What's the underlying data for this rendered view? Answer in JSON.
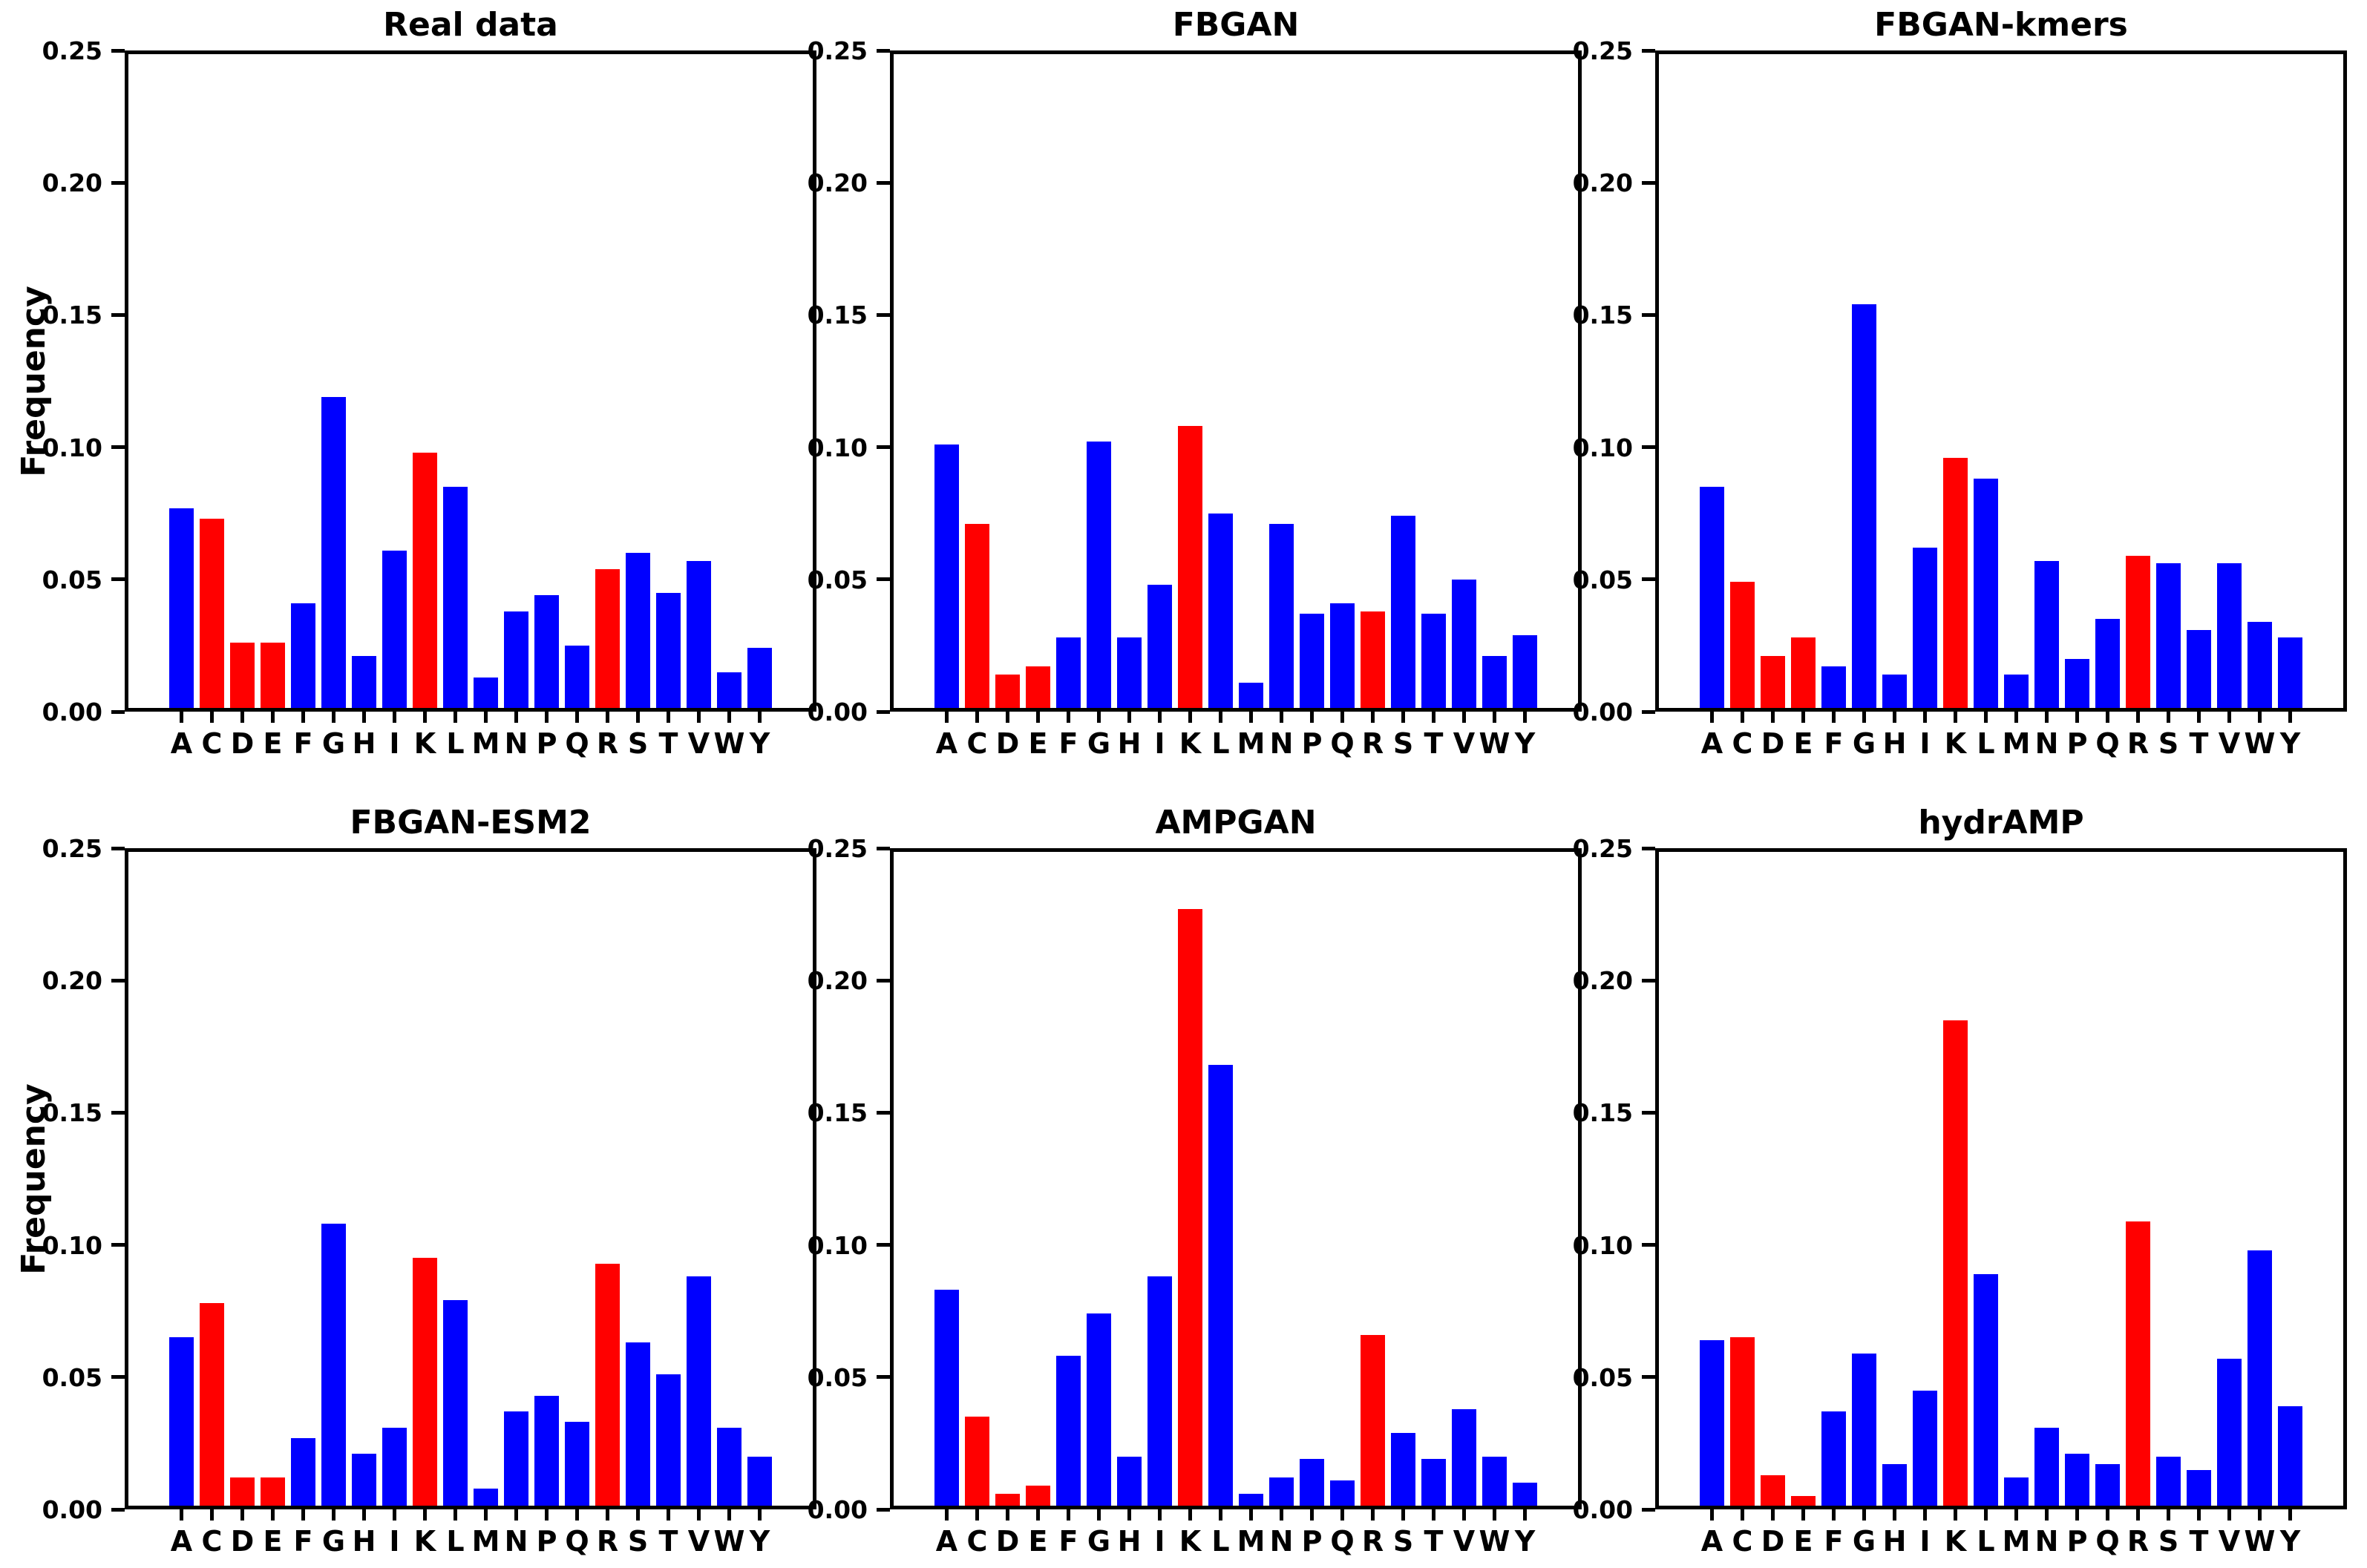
{
  "figure": {
    "ylabel": "Frequency",
    "background_color": "#ffffff",
    "axis_color": "#000000",
    "bar_color_default": "#0000ff",
    "bar_color_highlight": "#ff0000",
    "highlight_categories": [
      "C",
      "D",
      "E",
      "K",
      "R"
    ],
    "y_ticks": [
      "0.00",
      "0.05",
      "0.10",
      "0.15",
      "0.20",
      "0.25"
    ]
  },
  "chart_data": [
    {
      "type": "bar",
      "title": "Real data",
      "ylabel": "Frequency",
      "xlabel": "",
      "ylim": [
        0,
        0.25
      ],
      "grid": false,
      "categories": [
        "A",
        "C",
        "D",
        "E",
        "F",
        "G",
        "H",
        "I",
        "K",
        "L",
        "M",
        "N",
        "P",
        "Q",
        "R",
        "S",
        "T",
        "V",
        "W",
        "Y"
      ],
      "values": [
        0.077,
        0.073,
        0.026,
        0.026,
        0.041,
        0.119,
        0.021,
        0.061,
        0.098,
        0.085,
        0.013,
        0.038,
        0.044,
        0.025,
        0.054,
        0.06,
        0.045,
        0.057,
        0.015,
        0.024
      ]
    },
    {
      "type": "bar",
      "title": "FBGAN",
      "ylabel": "",
      "xlabel": "",
      "ylim": [
        0,
        0.25
      ],
      "grid": false,
      "categories": [
        "A",
        "C",
        "D",
        "E",
        "F",
        "G",
        "H",
        "I",
        "K",
        "L",
        "M",
        "N",
        "P",
        "Q",
        "R",
        "S",
        "T",
        "V",
        "W",
        "Y"
      ],
      "values": [
        0.101,
        0.071,
        0.014,
        0.017,
        0.028,
        0.102,
        0.028,
        0.048,
        0.108,
        0.075,
        0.011,
        0.071,
        0.037,
        0.041,
        0.038,
        0.074,
        0.037,
        0.05,
        0.021,
        0.029
      ]
    },
    {
      "type": "bar",
      "title": "FBGAN-kmers",
      "ylabel": "",
      "xlabel": "",
      "ylim": [
        0,
        0.25
      ],
      "grid": false,
      "categories": [
        "A",
        "C",
        "D",
        "E",
        "F",
        "G",
        "H",
        "I",
        "K",
        "L",
        "M",
        "N",
        "P",
        "Q",
        "R",
        "S",
        "T",
        "V",
        "W",
        "Y"
      ],
      "values": [
        0.085,
        0.049,
        0.021,
        0.028,
        0.017,
        0.154,
        0.014,
        0.062,
        0.096,
        0.088,
        0.014,
        0.057,
        0.02,
        0.035,
        0.059,
        0.056,
        0.031,
        0.056,
        0.034,
        0.028
      ]
    },
    {
      "type": "bar",
      "title": "FBGAN-ESM2",
      "ylabel": "Frequency",
      "xlabel": "",
      "ylim": [
        0,
        0.25
      ],
      "grid": false,
      "categories": [
        "A",
        "C",
        "D",
        "E",
        "F",
        "G",
        "H",
        "I",
        "K",
        "L",
        "M",
        "N",
        "P",
        "Q",
        "R",
        "S",
        "T",
        "V",
        "W",
        "Y"
      ],
      "values": [
        0.065,
        0.078,
        0.012,
        0.012,
        0.027,
        0.108,
        0.021,
        0.031,
        0.095,
        0.079,
        0.008,
        0.037,
        0.043,
        0.033,
        0.093,
        0.063,
        0.051,
        0.088,
        0.031,
        0.02
      ]
    },
    {
      "type": "bar",
      "title": "AMPGAN",
      "ylabel": "",
      "xlabel": "",
      "ylim": [
        0,
        0.25
      ],
      "grid": false,
      "categories": [
        "A",
        "C",
        "D",
        "E",
        "F",
        "G",
        "H",
        "I",
        "K",
        "L",
        "M",
        "N",
        "P",
        "Q",
        "R",
        "S",
        "T",
        "V",
        "W",
        "Y"
      ],
      "values": [
        0.083,
        0.035,
        0.006,
        0.009,
        0.058,
        0.074,
        0.02,
        0.088,
        0.227,
        0.168,
        0.006,
        0.012,
        0.019,
        0.011,
        0.066,
        0.029,
        0.019,
        0.038,
        0.02,
        0.01
      ]
    },
    {
      "type": "bar",
      "title": "hydrAMP",
      "ylabel": "",
      "xlabel": "",
      "ylim": [
        0,
        0.25
      ],
      "grid": false,
      "categories": [
        "A",
        "C",
        "D",
        "E",
        "F",
        "G",
        "H",
        "I",
        "K",
        "L",
        "M",
        "N",
        "P",
        "Q",
        "R",
        "S",
        "T",
        "V",
        "W",
        "Y"
      ],
      "values": [
        0.064,
        0.065,
        0.013,
        0.005,
        0.037,
        0.059,
        0.017,
        0.045,
        0.185,
        0.089,
        0.012,
        0.031,
        0.021,
        0.017,
        0.109,
        0.02,
        0.015,
        0.057,
        0.098,
        0.039
      ]
    }
  ]
}
